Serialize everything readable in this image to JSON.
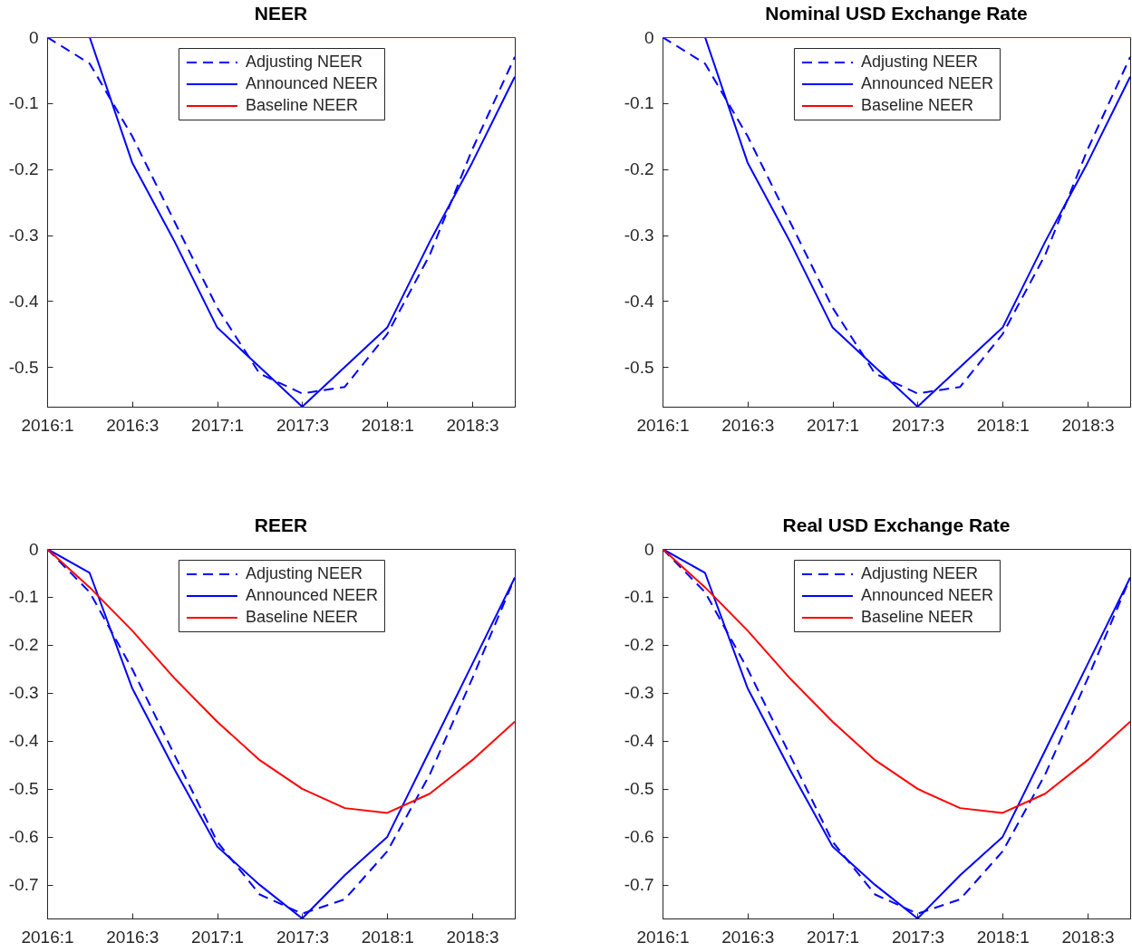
{
  "chart_data": [
    {
      "type": "line",
      "title": "NEER",
      "categories": [
        "2016:1",
        null,
        "2016:3",
        null,
        "2017:1",
        null,
        "2017:3",
        null,
        "2018:1",
        null,
        "2018:3",
        null
      ],
      "ylim": [
        -0.56,
        0
      ],
      "yticks": [
        -0.5,
        -0.4,
        -0.3,
        -0.2,
        -0.1,
        0
      ],
      "legend": "top",
      "series": [
        {
          "name": "Adjusting NEER",
          "color": "#0000ff",
          "line_style": "dashed",
          "values": [
            0,
            -0.04,
            -0.15,
            -0.28,
            -0.41,
            -0.51,
            -0.54,
            -0.53,
            -0.45,
            -0.33,
            -0.17,
            -0.03
          ]
        },
        {
          "name": "Announced NEER",
          "color": "#0000ff",
          "line_style": "solid",
          "values": [
            0,
            0,
            -0.19,
            -0.31,
            -0.44,
            -0.5,
            -0.56,
            -0.5,
            -0.44,
            -0.31,
            -0.19,
            -0.06
          ]
        },
        {
          "name": "Baseline NEER",
          "color": "#ff0000",
          "line_style": "solid",
          "values": [
            0,
            0,
            0,
            0,
            0,
            0,
            0,
            0,
            0,
            0,
            0,
            0
          ]
        }
      ]
    },
    {
      "type": "line",
      "title": "Nominal USD Exchange Rate",
      "categories": [
        "2016:1",
        null,
        "2016:3",
        null,
        "2017:1",
        null,
        "2017:3",
        null,
        "2018:1",
        null,
        "2018:3",
        null
      ],
      "ylim": [
        -0.56,
        0
      ],
      "yticks": [
        -0.5,
        -0.4,
        -0.3,
        -0.2,
        -0.1,
        0
      ],
      "legend": "top",
      "series": [
        {
          "name": "Adjusting NEER",
          "color": "#0000ff",
          "line_style": "dashed",
          "values": [
            0,
            -0.04,
            -0.15,
            -0.28,
            -0.41,
            -0.51,
            -0.54,
            -0.53,
            -0.45,
            -0.33,
            -0.17,
            -0.03
          ]
        },
        {
          "name": "Announced NEER",
          "color": "#0000ff",
          "line_style": "solid",
          "values": [
            0,
            0,
            -0.19,
            -0.31,
            -0.44,
            -0.5,
            -0.56,
            -0.5,
            -0.44,
            -0.31,
            -0.19,
            -0.06
          ]
        },
        {
          "name": "Baseline NEER",
          "color": "#ff0000",
          "line_style": "solid",
          "values": [
            0,
            0,
            0,
            0,
            0,
            0,
            0,
            0,
            0,
            0,
            0,
            0
          ]
        }
      ]
    },
    {
      "type": "line",
      "title": "REER",
      "categories": [
        "2016:1",
        null,
        "2016:3",
        null,
        "2017:1",
        null,
        "2017:3",
        null,
        "2018:1",
        null,
        "2018:3",
        null
      ],
      "ylim": [
        -0.77,
        0
      ],
      "yticks": [
        -0.7,
        -0.6,
        -0.5,
        -0.4,
        -0.3,
        -0.2,
        -0.1,
        0
      ],
      "legend": "top",
      "series": [
        {
          "name": "Adjusting NEER",
          "color": "#0000ff",
          "line_style": "dashed",
          "values": [
            0,
            -0.09,
            -0.25,
            -0.43,
            -0.61,
            -0.72,
            -0.76,
            -0.73,
            -0.63,
            -0.47,
            -0.27,
            -0.06
          ]
        },
        {
          "name": "Announced NEER",
          "color": "#0000ff",
          "line_style": "solid",
          "values": [
            0,
            -0.05,
            -0.29,
            -0.46,
            -0.62,
            -0.7,
            -0.77,
            -0.68,
            -0.6,
            -0.42,
            -0.24,
            -0.06
          ]
        },
        {
          "name": "Baseline NEER",
          "color": "#ff0000",
          "line_style": "solid",
          "values": [
            0,
            -0.08,
            -0.17,
            -0.27,
            -0.36,
            -0.44,
            -0.5,
            -0.54,
            -0.55,
            -0.51,
            -0.44,
            -0.36
          ]
        }
      ]
    },
    {
      "type": "line",
      "title": "Real USD Exchange Rate",
      "categories": [
        "2016:1",
        null,
        "2016:3",
        null,
        "2017:1",
        null,
        "2017:3",
        null,
        "2018:1",
        null,
        "2018:3",
        null
      ],
      "ylim": [
        -0.77,
        0
      ],
      "yticks": [
        -0.7,
        -0.6,
        -0.5,
        -0.4,
        -0.3,
        -0.2,
        -0.1,
        0
      ],
      "legend": "top",
      "series": [
        {
          "name": "Adjusting NEER",
          "color": "#0000ff",
          "line_style": "dashed",
          "values": [
            0,
            -0.09,
            -0.25,
            -0.43,
            -0.61,
            -0.72,
            -0.76,
            -0.73,
            -0.63,
            -0.47,
            -0.27,
            -0.06
          ]
        },
        {
          "name": "Announced NEER",
          "color": "#0000ff",
          "line_style": "solid",
          "values": [
            0,
            -0.05,
            -0.29,
            -0.46,
            -0.62,
            -0.7,
            -0.77,
            -0.68,
            -0.6,
            -0.42,
            -0.24,
            -0.06
          ]
        },
        {
          "name": "Baseline NEER",
          "color": "#ff0000",
          "line_style": "solid",
          "values": [
            0,
            -0.08,
            -0.17,
            -0.27,
            -0.36,
            -0.44,
            -0.5,
            -0.54,
            -0.55,
            -0.51,
            -0.44,
            -0.36
          ]
        }
      ]
    }
  ]
}
